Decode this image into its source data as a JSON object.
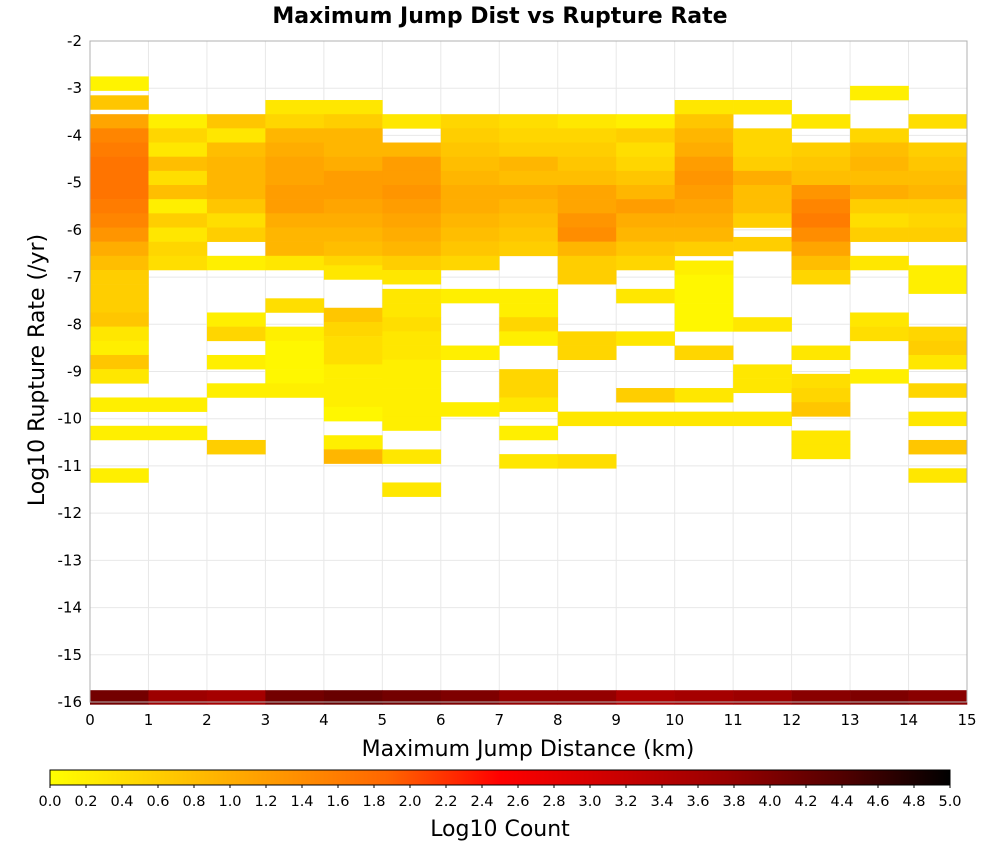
{
  "chart_data": {
    "type": "heatmap",
    "title": "Maximum Jump Dist vs Rupture Rate",
    "xlabel": "Maximum Jump Distance (km)",
    "ylabel": "Log10 Rupture Rate (/yr)",
    "xlim": [
      0,
      15
    ],
    "ylim": [
      -16,
      -2
    ],
    "x_ticks": [
      "0",
      "1",
      "2",
      "3",
      "4",
      "5",
      "6",
      "7",
      "8",
      "9",
      "10",
      "11",
      "12",
      "13",
      "14",
      "15"
    ],
    "y_ticks": [
      "-2",
      "-3",
      "-4",
      "-5",
      "-6",
      "-7",
      "-8",
      "-9",
      "-10",
      "-11",
      "-12",
      "-13",
      "-14",
      "-15",
      "-16"
    ],
    "x_bin_width": 1,
    "y_bin_width": 0.3,
    "colorbar": {
      "label": "Log10 Count",
      "range": [
        0,
        5
      ],
      "ticks": [
        "0.0",
        "0.2",
        "0.4",
        "0.6",
        "0.8",
        "1.0",
        "1.2",
        "1.4",
        "1.6",
        "1.8",
        "2.0",
        "2.2",
        "2.4",
        "2.6",
        "2.8",
        "3.0",
        "3.2",
        "3.4",
        "3.6",
        "3.8",
        "4.0",
        "4.2",
        "4.4",
        "4.6",
        "4.8",
        "5.0"
      ],
      "colors": [
        "#ffff00",
        "#ffcc00",
        "#ff9900",
        "#ff6600",
        "#ff0000",
        "#cc0000",
        "#990000",
        "#550000",
        "#000000"
      ]
    },
    "grid": true,
    "columns": [
      {
        "x": 0,
        "cells": [
          [
            -15.9,
            4.1
          ],
          [
            -2.9,
            0.15
          ],
          [
            -3.3,
            0.7
          ],
          [
            -3.7,
            1.1
          ],
          [
            -4.0,
            1.5
          ],
          [
            -4.3,
            1.6
          ],
          [
            -4.6,
            1.7
          ],
          [
            -4.9,
            1.7
          ],
          [
            -5.2,
            1.7
          ],
          [
            -5.5,
            1.6
          ],
          [
            -5.8,
            1.5
          ],
          [
            -6.1,
            1.3
          ],
          [
            -6.4,
            1.0
          ],
          [
            -6.7,
            0.8
          ],
          [
            -7.0,
            0.6
          ],
          [
            -7.3,
            0.6
          ],
          [
            -7.6,
            0.6
          ],
          [
            -7.9,
            0.7
          ],
          [
            -8.2,
            0.3
          ],
          [
            -8.5,
            0.2
          ],
          [
            -8.8,
            0.7
          ],
          [
            -9.1,
            0.3
          ],
          [
            -9.7,
            0.2
          ],
          [
            -10.3,
            0.2
          ],
          [
            -11.2,
            0.2
          ]
        ]
      },
      {
        "x": 1,
        "cells": [
          [
            -15.9,
            3.7
          ],
          [
            -3.7,
            0.2
          ],
          [
            -4.0,
            0.5
          ],
          [
            -4.3,
            0.3
          ],
          [
            -4.6,
            0.8
          ],
          [
            -4.9,
            0.4
          ],
          [
            -5.2,
            0.8
          ],
          [
            -5.5,
            0.2
          ],
          [
            -5.8,
            0.6
          ],
          [
            -6.1,
            0.3
          ],
          [
            -6.4,
            0.5
          ],
          [
            -6.7,
            0.4
          ],
          [
            -9.7,
            0.2
          ],
          [
            -10.3,
            0.2
          ]
        ]
      },
      {
        "x": 2,
        "cells": [
          [
            -15.9,
            3.6
          ],
          [
            -3.7,
            0.7
          ],
          [
            -4.0,
            0.3
          ],
          [
            -4.3,
            0.8
          ],
          [
            -4.6,
            0.9
          ],
          [
            -4.9,
            0.9
          ],
          [
            -5.2,
            0.9
          ],
          [
            -5.5,
            0.7
          ],
          [
            -5.8,
            0.4
          ],
          [
            -6.1,
            0.6
          ],
          [
            -6.7,
            0.2
          ],
          [
            -7.9,
            0.2
          ],
          [
            -8.2,
            0.5
          ],
          [
            -8.8,
            0.2
          ],
          [
            -9.4,
            0.2
          ],
          [
            -10.6,
            0.6
          ]
        ]
      },
      {
        "x": 3,
        "cells": [
          [
            -15.9,
            4.1
          ],
          [
            -3.4,
            0.3
          ],
          [
            -3.7,
            0.5
          ],
          [
            -4.0,
            0.9
          ],
          [
            -4.3,
            1.0
          ],
          [
            -4.6,
            1.1
          ],
          [
            -4.9,
            1.1
          ],
          [
            -5.2,
            1.2
          ],
          [
            -5.5,
            1.2
          ],
          [
            -5.8,
            1.0
          ],
          [
            -6.1,
            0.9
          ],
          [
            -6.4,
            0.9
          ],
          [
            -6.7,
            0.3
          ],
          [
            -7.6,
            0.4
          ],
          [
            -8.2,
            0.2
          ],
          [
            -8.5,
            0.1
          ],
          [
            -8.8,
            0.1
          ],
          [
            -9.1,
            0.1
          ],
          [
            -9.4,
            0.2
          ]
        ]
      },
      {
        "x": 4,
        "cells": [
          [
            -15.9,
            4.2
          ],
          [
            -3.4,
            0.3
          ],
          [
            -3.7,
            0.6
          ],
          [
            -4.0,
            0.9
          ],
          [
            -4.3,
            0.9
          ],
          [
            -4.6,
            1.0
          ],
          [
            -4.9,
            1.2
          ],
          [
            -5.2,
            1.2
          ],
          [
            -5.5,
            1.1
          ],
          [
            -5.8,
            1.0
          ],
          [
            -6.1,
            0.9
          ],
          [
            -6.4,
            0.8
          ],
          [
            -6.7,
            0.5
          ],
          [
            -6.9,
            0.3
          ],
          [
            -7.8,
            0.7
          ],
          [
            -8.1,
            0.5
          ],
          [
            -8.4,
            0.4
          ],
          [
            -8.7,
            0.4
          ],
          [
            -9.0,
            0.2
          ],
          [
            -9.3,
            0.2
          ],
          [
            -9.6,
            0.2
          ],
          [
            -9.9,
            0.1
          ],
          [
            -10.5,
            0.2
          ],
          [
            -10.8,
            0.9
          ]
        ]
      },
      {
        "x": 5,
        "cells": [
          [
            -15.9,
            4.1
          ],
          [
            -3.7,
            0.3
          ],
          [
            -4.3,
            0.9
          ],
          [
            -4.6,
            1.2
          ],
          [
            -4.9,
            1.2
          ],
          [
            -5.2,
            1.3
          ],
          [
            -5.5,
            1.2
          ],
          [
            -5.8,
            1.1
          ],
          [
            -6.1,
            1.0
          ],
          [
            -6.4,
            0.9
          ],
          [
            -6.7,
            0.6
          ],
          [
            -7.0,
            0.3
          ],
          [
            -7.4,
            0.3
          ],
          [
            -7.7,
            0.3
          ],
          [
            -8.0,
            0.4
          ],
          [
            -8.3,
            0.3
          ],
          [
            -8.6,
            0.3
          ],
          [
            -8.9,
            0.2
          ],
          [
            -9.2,
            0.2
          ],
          [
            -9.5,
            0.2
          ],
          [
            -9.8,
            0.2
          ],
          [
            -10.1,
            0.2
          ],
          [
            -10.8,
            0.3
          ],
          [
            -11.5,
            0.3
          ]
        ]
      },
      {
        "x": 6,
        "cells": [
          [
            -15.9,
            4.0
          ],
          [
            -3.7,
            0.5
          ],
          [
            -4.0,
            0.6
          ],
          [
            -4.3,
            0.7
          ],
          [
            -4.6,
            0.8
          ],
          [
            -4.9,
            0.9
          ],
          [
            -5.2,
            1.0
          ],
          [
            -5.5,
            1.0
          ],
          [
            -5.8,
            0.9
          ],
          [
            -6.1,
            0.8
          ],
          [
            -6.4,
            0.7
          ],
          [
            -6.7,
            0.5
          ],
          [
            -7.4,
            0.2
          ],
          [
            -8.6,
            0.2
          ],
          [
            -9.8,
            0.2
          ]
        ]
      },
      {
        "x": 7,
        "cells": [
          [
            -15.9,
            3.8
          ],
          [
            -3.7,
            0.4
          ],
          [
            -4.0,
            0.5
          ],
          [
            -4.3,
            0.6
          ],
          [
            -4.6,
            0.9
          ],
          [
            -4.9,
            0.8
          ],
          [
            -5.2,
            1.0
          ],
          [
            -5.5,
            0.9
          ],
          [
            -5.8,
            0.8
          ],
          [
            -6.1,
            0.7
          ],
          [
            -6.4,
            0.6
          ],
          [
            -7.4,
            0.2
          ],
          [
            -7.7,
            0.2
          ],
          [
            -8.0,
            0.5
          ],
          [
            -8.3,
            0.2
          ],
          [
            -9.1,
            0.5
          ],
          [
            -9.4,
            0.5
          ],
          [
            -9.7,
            0.3
          ],
          [
            -10.3,
            0.2
          ],
          [
            -10.9,
            0.3
          ]
        ]
      },
      {
        "x": 8,
        "cells": [
          [
            -15.9,
            3.8
          ],
          [
            -3.7,
            0.3
          ],
          [
            -4.0,
            0.5
          ],
          [
            -4.3,
            0.6
          ],
          [
            -4.6,
            0.7
          ],
          [
            -4.9,
            0.8
          ],
          [
            -5.2,
            1.1
          ],
          [
            -5.5,
            1.1
          ],
          [
            -5.8,
            1.3
          ],
          [
            -6.1,
            1.4
          ],
          [
            -6.4,
            0.9
          ],
          [
            -6.7,
            0.6
          ],
          [
            -7.0,
            0.6
          ],
          [
            -8.3,
            0.5
          ],
          [
            -8.6,
            0.5
          ],
          [
            -10.0,
            0.3
          ],
          [
            -10.9,
            0.4
          ]
        ]
      },
      {
        "x": 9,
        "cells": [
          [
            -15.9,
            3.5
          ],
          [
            -3.7,
            0.2
          ],
          [
            -4.0,
            0.6
          ],
          [
            -4.3,
            0.4
          ],
          [
            -4.6,
            0.5
          ],
          [
            -4.9,
            0.7
          ],
          [
            -5.2,
            0.9
          ],
          [
            -5.5,
            1.2
          ],
          [
            -5.8,
            1.0
          ],
          [
            -6.1,
            0.9
          ],
          [
            -6.4,
            0.7
          ],
          [
            -6.7,
            0.5
          ],
          [
            -7.4,
            0.3
          ],
          [
            -8.3,
            0.3
          ],
          [
            -9.5,
            0.6
          ],
          [
            -10.0,
            0.3
          ]
        ]
      },
      {
        "x": 10,
        "cells": [
          [
            -15.9,
            3.6
          ],
          [
            -3.4,
            0.3
          ],
          [
            -3.7,
            0.7
          ],
          [
            -4.0,
            0.9
          ],
          [
            -4.3,
            1.0
          ],
          [
            -4.6,
            1.2
          ],
          [
            -4.9,
            1.3
          ],
          [
            -5.2,
            1.2
          ],
          [
            -5.5,
            1.1
          ],
          [
            -5.8,
            1.0
          ],
          [
            -6.1,
            0.9
          ],
          [
            -6.4,
            0.6
          ],
          [
            -6.8,
            0.2
          ],
          [
            -7.1,
            0.1
          ],
          [
            -7.4,
            0.1
          ],
          [
            -7.7,
            0.1
          ],
          [
            -8.0,
            0.1
          ],
          [
            -8.6,
            0.5
          ],
          [
            -9.5,
            0.3
          ],
          [
            -10.0,
            0.3
          ]
        ]
      },
      {
        "x": 11,
        "cells": [
          [
            -15.9,
            3.7
          ],
          [
            -3.4,
            0.3
          ],
          [
            -4.0,
            0.5
          ],
          [
            -4.3,
            0.5
          ],
          [
            -4.6,
            0.6
          ],
          [
            -4.9,
            1.0
          ],
          [
            -5.2,
            0.8
          ],
          [
            -5.5,
            0.8
          ],
          [
            -5.8,
            0.6
          ],
          [
            -6.3,
            0.6
          ],
          [
            -8.0,
            0.3
          ],
          [
            -9.0,
            0.3
          ],
          [
            -9.3,
            0.3
          ],
          [
            -10.0,
            0.3
          ]
        ]
      },
      {
        "x": 12,
        "cells": [
          [
            -15.9,
            3.9
          ],
          [
            -3.7,
            0.3
          ],
          [
            -4.3,
            0.6
          ],
          [
            -4.6,
            0.7
          ],
          [
            -4.9,
            0.8
          ],
          [
            -5.2,
            1.3
          ],
          [
            -5.5,
            1.5
          ],
          [
            -5.8,
            1.6
          ],
          [
            -6.1,
            1.4
          ],
          [
            -6.4,
            1.1
          ],
          [
            -6.7,
            0.8
          ],
          [
            -7.0,
            0.5
          ],
          [
            -8.6,
            0.3
          ],
          [
            -9.2,
            0.4
          ],
          [
            -9.5,
            0.5
          ],
          [
            -9.8,
            0.7
          ],
          [
            -10.4,
            0.3
          ],
          [
            -10.7,
            0.3
          ]
        ]
      },
      {
        "x": 13,
        "cells": [
          [
            -15.9,
            4.0
          ],
          [
            -3.1,
            0.2
          ],
          [
            -4.0,
            0.5
          ],
          [
            -4.3,
            0.8
          ],
          [
            -4.6,
            0.9
          ],
          [
            -4.9,
            0.8
          ],
          [
            -5.2,
            1.0
          ],
          [
            -5.5,
            0.6
          ],
          [
            -5.8,
            0.4
          ],
          [
            -6.1,
            0.6
          ],
          [
            -6.7,
            0.3
          ],
          [
            -7.9,
            0.3
          ],
          [
            -8.2,
            0.4
          ],
          [
            -9.1,
            0.2
          ]
        ]
      },
      {
        "x": 14,
        "cells": [
          [
            -15.9,
            3.9
          ],
          [
            -3.7,
            0.4
          ],
          [
            -4.3,
            0.6
          ],
          [
            -4.6,
            0.7
          ],
          [
            -4.9,
            0.8
          ],
          [
            -5.2,
            0.9
          ],
          [
            -5.5,
            0.6
          ],
          [
            -5.8,
            0.5
          ],
          [
            -6.1,
            0.6
          ],
          [
            -6.9,
            0.2
          ],
          [
            -7.2,
            0.2
          ],
          [
            -8.2,
            0.5
          ],
          [
            -8.5,
            0.6
          ],
          [
            -8.8,
            0.3
          ],
          [
            -9.4,
            0.5
          ],
          [
            -10.0,
            0.3
          ],
          [
            -10.6,
            0.7
          ],
          [
            -11.2,
            0.3
          ]
        ]
      }
    ]
  }
}
